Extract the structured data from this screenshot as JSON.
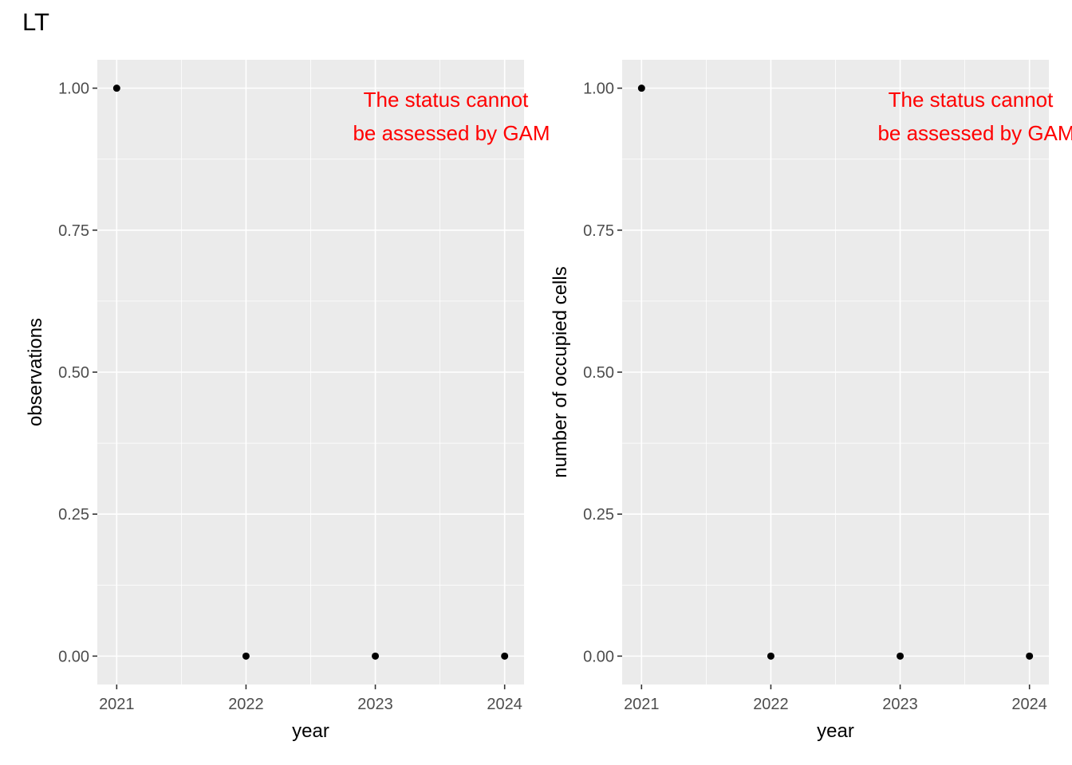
{
  "title": "LT",
  "chart_data": [
    {
      "type": "scatter",
      "xlabel": "year",
      "ylabel": "observations",
      "x_ticks": [
        "2021",
        "2022",
        "2023",
        "2024"
      ],
      "y_ticks": [
        "0.00",
        "0.25",
        "0.50",
        "0.75",
        "1.00"
      ],
      "xlim": [
        2020.85,
        2024.15
      ],
      "ylim": [
        -0.05,
        1.05
      ],
      "points": [
        {
          "x": 2021,
          "y": 1
        },
        {
          "x": 2022,
          "y": 0
        },
        {
          "x": 2023,
          "y": 0
        },
        {
          "x": 2024,
          "y": 0
        }
      ],
      "annotation": [
        "The status cannot",
        "be assessed by GAM"
      ],
      "annotation_color": "#ff0000",
      "grid": true
    },
    {
      "type": "scatter",
      "xlabel": "year",
      "ylabel": "number of occupied cells",
      "x_ticks": [
        "2021",
        "2022",
        "2023",
        "2024"
      ],
      "y_ticks": [
        "0.00",
        "0.25",
        "0.50",
        "0.75",
        "1.00"
      ],
      "xlim": [
        2020.85,
        2024.15
      ],
      "ylim": [
        -0.05,
        1.05
      ],
      "points": [
        {
          "x": 2021,
          "y": 1
        },
        {
          "x": 2022,
          "y": 0
        },
        {
          "x": 2023,
          "y": 0
        },
        {
          "x": 2024,
          "y": 0
        }
      ],
      "annotation": [
        "The status cannot",
        "be assessed by GAM"
      ],
      "annotation_color": "#ff0000",
      "grid": true
    }
  ]
}
